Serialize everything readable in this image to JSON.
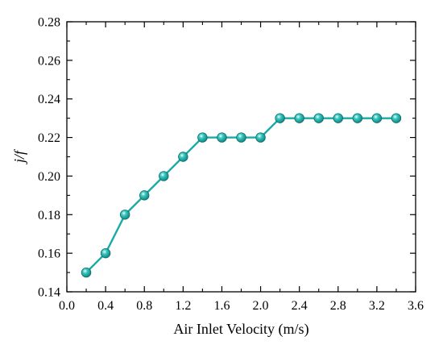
{
  "chart_data": {
    "type": "line",
    "title": "",
    "xlabel": "Air Inlet Velocity (m/s)",
    "ylabel": "j/f",
    "xlim": [
      0.0,
      3.6
    ],
    "ylim": [
      0.14,
      0.28
    ],
    "xticks": [
      "0.0",
      "0.4",
      "0.8",
      "1.2",
      "1.6",
      "2.0",
      "2.4",
      "2.8",
      "3.2",
      "3.6"
    ],
    "yticks": [
      "0.14",
      "0.16",
      "0.18",
      "0.20",
      "0.22",
      "0.24",
      "0.26",
      "0.28"
    ],
    "grid": false,
    "series": [
      {
        "color": "#19aaa6",
        "x": [
          0.2,
          0.4,
          0.6,
          0.8,
          1.0,
          1.2,
          1.4,
          1.6,
          1.8,
          2.0,
          2.2,
          2.4,
          2.6,
          2.8,
          3.0,
          3.2,
          3.4
        ],
        "y": [
          0.15,
          0.16,
          0.18,
          0.19,
          0.2,
          0.21,
          0.22,
          0.22,
          0.22,
          0.22,
          0.23,
          0.23,
          0.23,
          0.23,
          0.23,
          0.23,
          0.23
        ]
      }
    ]
  }
}
